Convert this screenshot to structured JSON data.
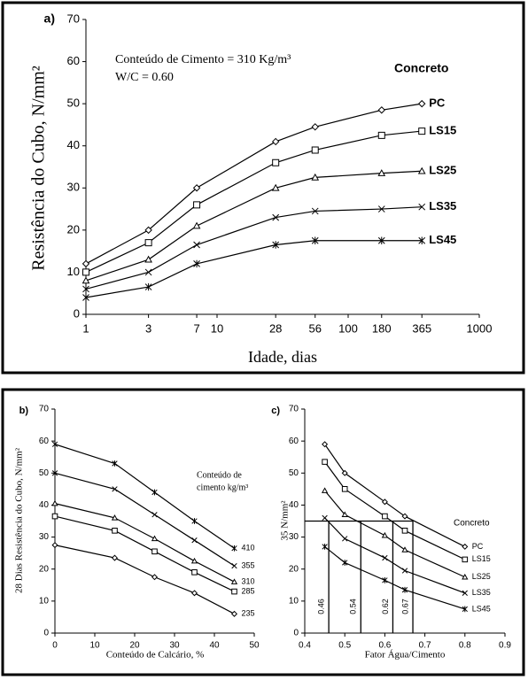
{
  "chart_data": [
    {
      "type": "line",
      "label": "a)",
      "xscale": "log",
      "color": "#000000",
      "x": [
        1,
        3,
        7,
        28,
        56,
        180,
        365
      ],
      "series": [
        {
          "name": "PC",
          "marker": "diamond",
          "values": [
            12,
            20,
            30,
            41,
            44.5,
            48.5,
            50
          ]
        },
        {
          "name": "LS15",
          "marker": "square",
          "values": [
            10,
            17,
            26,
            36,
            39,
            42.5,
            43.5
          ]
        },
        {
          "name": "LS25",
          "marker": "triangle",
          "values": [
            8,
            13,
            21,
            30,
            32.5,
            33.5,
            34
          ]
        },
        {
          "name": "LS35",
          "marker": "x",
          "values": [
            6,
            10,
            16.5,
            23,
            24.5,
            25,
            25.5
          ]
        },
        {
          "name": "LS45",
          "marker": "asterisk",
          "values": [
            4,
            6.5,
            12,
            16.5,
            17.5,
            17.5,
            17.5
          ]
        }
      ],
      "xlim": [
        1,
        1000
      ],
      "ylim": [
        0,
        70
      ],
      "xticks": [
        1,
        3,
        7,
        10,
        28,
        56,
        100,
        180,
        365,
        1000
      ],
      "yticks": [
        0,
        10,
        20,
        30,
        40,
        50,
        60,
        70
      ],
      "xlabel": "Idade, dias",
      "ylabel": "Resistência do Cubo, N/mm²",
      "annotations": [
        "Conteúdo de Cimento = 310 Kg/m³",
        "W/C = 0.60"
      ],
      "legend_title": "Concreto"
    },
    {
      "type": "line",
      "label": "b)",
      "xscale": "linear",
      "color": "#000000",
      "x": [
        0,
        15,
        25,
        35,
        45
      ],
      "series": [
        {
          "name": "410",
          "marker": "asterisk",
          "values": [
            59,
            53,
            44,
            35,
            26.5
          ]
        },
        {
          "name": "355",
          "marker": "x",
          "values": [
            50,
            45,
            37,
            29,
            21
          ]
        },
        {
          "name": "310",
          "marker": "triangle",
          "values": [
            40.5,
            36,
            29.5,
            22.5,
            16
          ]
        },
        {
          "name": "285",
          "marker": "square",
          "values": [
            36.5,
            32,
            25.5,
            19,
            13
          ]
        },
        {
          "name": "235",
          "marker": "diamond",
          "values": [
            27.5,
            23.5,
            17.5,
            12.5,
            6
          ]
        }
      ],
      "xlim": [
        0,
        50
      ],
      "ylim": [
        0,
        70
      ],
      "xticks": [
        0,
        10,
        20,
        30,
        40,
        50
      ],
      "yticks": [
        0,
        10,
        20,
        30,
        40,
        50,
        60,
        70
      ],
      "xlabel": "Conteúdo de Calcário, %",
      "ylabel": "28 Dias Resistência do Cubo, N/mm²",
      "annotations": [
        "Conteúdo de",
        "cimento kg/m³"
      ]
    },
    {
      "type": "line",
      "label": "c)",
      "xscale": "linear",
      "color": "#000000",
      "x": [
        0.45,
        0.5,
        0.6,
        0.65,
        0.8
      ],
      "series": [
        {
          "name": "PC",
          "marker": "diamond",
          "values": [
            59,
            50,
            41,
            36.5,
            27
          ]
        },
        {
          "name": "LS15",
          "marker": "square",
          "values": [
            53.5,
            45,
            36.5,
            32,
            23
          ]
        },
        {
          "name": "LS25",
          "marker": "triangle",
          "values": [
            44.5,
            37,
            30.5,
            26,
            17.5
          ]
        },
        {
          "name": "LS35",
          "marker": "x",
          "values": [
            36,
            29.5,
            23.5,
            19.5,
            12.5
          ]
        },
        {
          "name": "LS45",
          "marker": "asterisk",
          "values": [
            27,
            22,
            16.5,
            13.5,
            7.5
          ]
        }
      ],
      "xlim": [
        0.4,
        0.9
      ],
      "ylim": [
        0,
        70
      ],
      "xticks": [
        0.4,
        0.5,
        0.6,
        0.7,
        0.8,
        0.9
      ],
      "yticks": [
        0,
        10,
        20,
        30,
        40,
        50,
        60,
        70
      ],
      "xlabel": "Fator Água/Cimento",
      "ylabel": "35 N/mm²",
      "legend_title": "Concreto",
      "reference_y": 35,
      "reference_x": [
        0.46,
        0.54,
        0.62,
        0.67
      ]
    }
  ]
}
